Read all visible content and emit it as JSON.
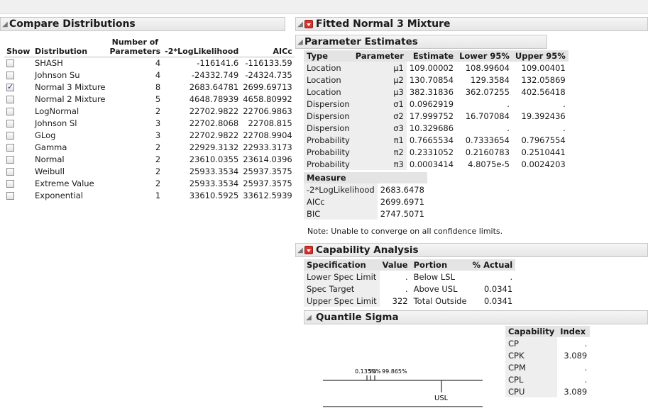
{
  "compare": {
    "title": "Compare Distributions",
    "headers": {
      "show": "Show",
      "distribution": "Distribution",
      "params_line1": "Number of",
      "params_line2": "Parameters",
      "loglik": "-2*LogLikelihood",
      "aicc": "AICc"
    },
    "rows": [
      {
        "checked": false,
        "name": "SHASH",
        "params": "4",
        "loglik": "-116141.6",
        "aicc": "-116133.59"
      },
      {
        "checked": false,
        "name": "Johnson Su",
        "params": "4",
        "loglik": "-24332.749",
        "aicc": "-24324.735"
      },
      {
        "checked": true,
        "name": "Normal 3 Mixture",
        "params": "8",
        "loglik": "2683.64781",
        "aicc": "2699.69713"
      },
      {
        "checked": false,
        "name": "Normal 2 Mixture",
        "params": "5",
        "loglik": "4648.78939",
        "aicc": "4658.80992"
      },
      {
        "checked": false,
        "name": "LogNormal",
        "params": "2",
        "loglik": "22702.9822",
        "aicc": "22706.9863"
      },
      {
        "checked": false,
        "name": "Johnson Sl",
        "params": "3",
        "loglik": "22702.8068",
        "aicc": "22708.815"
      },
      {
        "checked": false,
        "name": "GLog",
        "params": "3",
        "loglik": "22702.9822",
        "aicc": "22708.9904"
      },
      {
        "checked": false,
        "name": "Gamma",
        "params": "2",
        "loglik": "22929.3132",
        "aicc": "22933.3173"
      },
      {
        "checked": false,
        "name": "Normal",
        "params": "2",
        "loglik": "23610.0355",
        "aicc": "23614.0396"
      },
      {
        "checked": false,
        "name": "Weibull",
        "params": "2",
        "loglik": "25933.3534",
        "aicc": "25937.3575"
      },
      {
        "checked": false,
        "name": "Extreme Value",
        "params": "2",
        "loglik": "25933.3534",
        "aicc": "25937.3575"
      },
      {
        "checked": false,
        "name": "Exponential",
        "params": "1",
        "loglik": "33610.5925",
        "aicc": "33612.5939"
      }
    ]
  },
  "fitted": {
    "title": "Fitted Normal 3 Mixture",
    "param_title": "Parameter Estimates",
    "param_headers": [
      "Type",
      "Parameter",
      "Estimate",
      "Lower 95%",
      "Upper 95%"
    ],
    "params": [
      [
        "Location",
        "μ1",
        "109.00002",
        "108.99604",
        "109.00401"
      ],
      [
        "Location",
        "μ2",
        "130.70854",
        "129.3584",
        "132.05869"
      ],
      [
        "Location",
        "μ3",
        "382.31836",
        "362.07255",
        "402.56418"
      ],
      [
        "Dispersion",
        "σ1",
        "0.0962919",
        ".",
        "."
      ],
      [
        "Dispersion",
        "σ2",
        "17.999752",
        "16.707084",
        "19.392436"
      ],
      [
        "Dispersion",
        "σ3",
        "10.329686",
        ".",
        "."
      ],
      [
        "Probability",
        "π1",
        "0.7665534",
        "0.7333654",
        "0.7967554"
      ],
      [
        "Probability",
        "π2",
        "0.2331052",
        "0.2160783",
        "0.2510441"
      ],
      [
        "Probability",
        "π3",
        "0.0003414",
        "4.8075e-5",
        "0.0024203"
      ]
    ],
    "measure_header": "Measure",
    "measures": [
      [
        "-2*LogLikelihood",
        "2683.6478"
      ],
      [
        "AICc",
        "2699.6971"
      ],
      [
        "BIC",
        "2747.5071"
      ]
    ],
    "note": "Note: Unable to converge on all confidence limits."
  },
  "capability": {
    "title": "Capability Analysis",
    "headers": [
      "Specification",
      "Value",
      "Portion",
      "% Actual"
    ],
    "rows": [
      [
        "Lower Spec Limit",
        ".",
        "Below LSL",
        "."
      ],
      [
        "Spec Target",
        ".",
        "Above USL",
        "0.0341"
      ],
      [
        "Upper Spec Limit",
        "322",
        "Total Outside",
        "0.0341"
      ]
    ],
    "quantile_title": "Quantile Sigma",
    "index_headers": [
      "Capability",
      "Index"
    ],
    "indices": [
      [
        "CP",
        "."
      ],
      [
        "CPK",
        "3.089"
      ],
      [
        "CPM",
        "."
      ],
      [
        "CPL",
        "."
      ],
      [
        "CPU",
        "3.089"
      ]
    ],
    "plot": {
      "labels": [
        "0.135%",
        "50%",
        "99.865%"
      ],
      "usl_label": "USL"
    }
  }
}
